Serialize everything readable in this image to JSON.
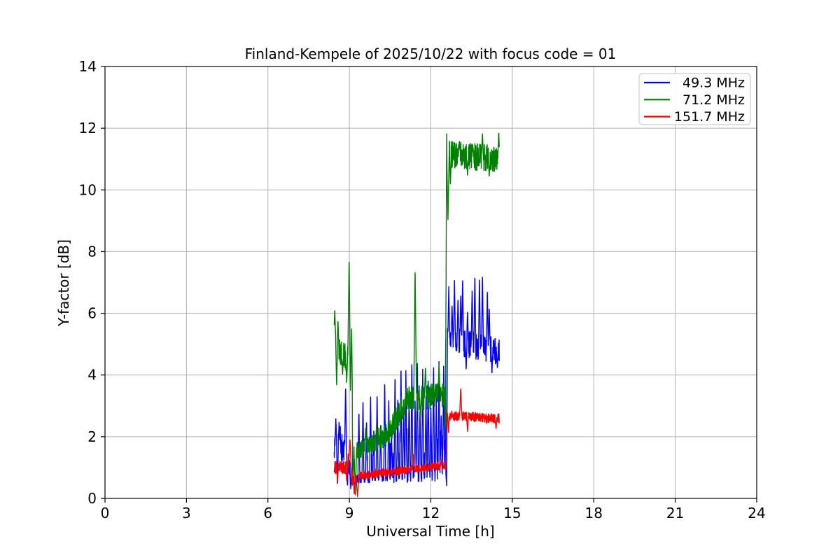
{
  "chart_data": {
    "type": "line",
    "title": "Finland-Kempele of 2025/10/22 with focus code = 01",
    "xlabel": "Universal Time [h]",
    "ylabel": "Y-factor [dB]",
    "xlim": [
      0,
      24
    ],
    "ylim": [
      0,
      14
    ],
    "xticks": [
      0,
      3,
      6,
      9,
      12,
      15,
      18,
      21,
      24
    ],
    "yticks": [
      0,
      2,
      4,
      6,
      8,
      10,
      12,
      14
    ],
    "grid": true,
    "grid_color": "#b0b0b0",
    "background": "#ffffff",
    "axis_color": "#000000",
    "legend": {
      "position": "upper-right",
      "border_color": "#cccccc"
    },
    "data_time_range_h": [
      8.44,
      14.52
    ],
    "series": [
      {
        "name": "49.3 MHz",
        "color": "#0000ff",
        "seed": 11,
        "segments": [
          {
            "t0": 8.44,
            "t1": 8.95,
            "v0": 1.65,
            "v1": 1.45,
            "noise": 0.35,
            "burst": [
              0.1,
              0.8
            ]
          },
          {
            "t0": 8.95,
            "t1": 9.1,
            "v0": 1.2,
            "v1": 0.7,
            "noise": 0.3
          },
          {
            "t0": 9.1,
            "t1": 10.6,
            "v0": 0.62,
            "v1": 0.75,
            "noise": 0.18,
            "burst": [
              0.06,
              1.1
            ]
          },
          {
            "t0": 10.6,
            "t1": 12.58,
            "v0": 0.78,
            "v1": 0.85,
            "noise": 0.3,
            "burst": [
              0.15,
              1.5
            ]
          },
          {
            "t0": 12.6,
            "t1": 14.52,
            "v0": 5.15,
            "v1": 4.75,
            "noise": 0.45
          }
        ],
        "spikes": [
          [
            8.5,
            2.6
          ],
          [
            8.62,
            2.5
          ],
          [
            8.86,
            3.7
          ],
          [
            9.35,
            2.9
          ],
          [
            9.5,
            3.2
          ],
          [
            9.63,
            2.6
          ],
          [
            9.78,
            3.4
          ],
          [
            9.9,
            2.3
          ],
          [
            10.02,
            3.5
          ],
          [
            10.15,
            2.4
          ],
          [
            10.3,
            3.9
          ],
          [
            10.45,
            3.3
          ],
          [
            10.55,
            2.2
          ],
          [
            10.68,
            4.1
          ],
          [
            10.78,
            3.3
          ],
          [
            10.9,
            4.4
          ],
          [
            11.0,
            3.0
          ],
          [
            11.08,
            4.3
          ],
          [
            11.2,
            3.6
          ],
          [
            11.3,
            4.5
          ],
          [
            11.42,
            3.2
          ],
          [
            11.5,
            4.6
          ],
          [
            11.6,
            2.9
          ],
          [
            11.7,
            4.2
          ],
          [
            11.82,
            3.4
          ],
          [
            11.9,
            4.0
          ],
          [
            12.0,
            3.1
          ],
          [
            12.1,
            4.4
          ],
          [
            12.2,
            3.3
          ],
          [
            12.3,
            4.5
          ],
          [
            12.38,
            2.8
          ],
          [
            12.47,
            4.3
          ],
          [
            12.56,
            6.7,
            0.05
          ],
          [
            12.66,
            6.9
          ],
          [
            12.78,
            6.3
          ],
          [
            12.87,
            7.1
          ],
          [
            13.0,
            6.5
          ],
          [
            13.1,
            6.6
          ],
          [
            13.17,
            7.2
          ],
          [
            13.35,
            6.1
          ],
          [
            13.52,
            6.8
          ],
          [
            13.62,
            7.3
          ],
          [
            13.79,
            7.2
          ],
          [
            13.9,
            7.3
          ],
          [
            14.08,
            6.7
          ],
          [
            14.15,
            6.2
          ]
        ],
        "dips": [
          [
            8.56,
            0.45
          ],
          [
            8.93,
            0.35
          ],
          [
            9.05,
            0.3
          ],
          [
            9.2,
            0.15
          ],
          [
            12.58,
            0.4
          ],
          [
            13.3,
            4.15
          ],
          [
            14.25,
            4.05
          ],
          [
            14.45,
            4.2
          ]
        ]
      },
      {
        "name": "71.2 MHz",
        "color": "#008000",
        "seed": 22,
        "segments": [
          {
            "t0": 8.44,
            "t1": 8.97,
            "v0": 4.95,
            "v1": 4.45,
            "noise": 0.45
          },
          {
            "t0": 8.97,
            "t1": 9.16,
            "v0": 4.2,
            "v1": 1.5,
            "noise": 0.5
          },
          {
            "t0": 9.16,
            "t1": 10.35,
            "v0": 1.5,
            "v1": 1.95,
            "noise": 0.3,
            "burst": [
              0.06,
              0.5
            ]
          },
          {
            "t0": 10.35,
            "t1": 11.05,
            "v0": 2.0,
            "v1": 3.1,
            "noise": 0.42
          },
          {
            "t0": 11.05,
            "t1": 12.5,
            "v0": 3.2,
            "v1": 3.35,
            "noise": 0.42
          },
          {
            "t0": 12.5,
            "t1": 12.56,
            "v0": 2.5,
            "v1": 3.5,
            "noise": 1.0
          },
          {
            "t0": 12.58,
            "t1": 14.52,
            "v0": 11.15,
            "v1": 11.0,
            "noise": 0.45
          }
        ],
        "spikes": [
          [
            8.46,
            6.15,
            0.045
          ],
          [
            8.58,
            5.8
          ],
          [
            8.99,
            7.8,
            0.05
          ],
          [
            9.08,
            5.6,
            0.045
          ],
          [
            9.6,
            2.3
          ],
          [
            10.0,
            2.4
          ],
          [
            11.42,
            7.5,
            0.05
          ],
          [
            11.8,
            4.3
          ],
          [
            12.3,
            4.4
          ],
          [
            12.59,
            12.0,
            0.05
          ],
          [
            13.05,
            11.6
          ],
          [
            13.55,
            11.4
          ],
          [
            13.9,
            11.85
          ],
          [
            14.5,
            11.9
          ]
        ],
        "dips": [
          [
            8.53,
            3.6
          ],
          [
            8.75,
            4.0
          ],
          [
            8.9,
            3.7
          ],
          [
            9.14,
            0.5
          ],
          [
            9.22,
            0.08,
            0.045
          ],
          [
            11.62,
            2.6
          ],
          [
            12.63,
            9.0,
            0.045
          ],
          [
            12.72,
            10.1
          ],
          [
            13.35,
            10.45
          ],
          [
            14.15,
            10.4
          ]
        ]
      },
      {
        "name": "151.7 MHz",
        "color": "#ff0000",
        "seed": 33,
        "segments": [
          {
            "t0": 8.44,
            "t1": 8.95,
            "v0": 1.0,
            "v1": 1.0,
            "noise": 0.22
          },
          {
            "t0": 8.95,
            "t1": 9.1,
            "v0": 1.3,
            "v1": 0.65,
            "noise": 0.3
          },
          {
            "t0": 9.1,
            "t1": 9.35,
            "v0": 0.6,
            "v1": 0.62,
            "noise": 0.2
          },
          {
            "t0": 9.35,
            "t1": 12.56,
            "v0": 0.72,
            "v1": 1.08,
            "noise": 0.14
          },
          {
            "t0": 12.58,
            "t1": 14.52,
            "v0": 2.7,
            "v1": 2.58,
            "noise": 0.17
          }
        ],
        "spikes": [
          [
            9.02,
            1.95,
            0.05
          ],
          [
            11.35,
            1.45
          ],
          [
            12.4,
            1.3
          ],
          [
            13.1,
            3.6,
            0.04
          ]
        ],
        "dips": [
          [
            8.56,
            0.5
          ],
          [
            8.9,
            0.55
          ],
          [
            9.18,
            0.1
          ],
          [
            9.3,
            0.05,
            0.045
          ],
          [
            12.65,
            2.1
          ],
          [
            13.35,
            2.15
          ],
          [
            14.4,
            2.25
          ]
        ]
      }
    ]
  }
}
